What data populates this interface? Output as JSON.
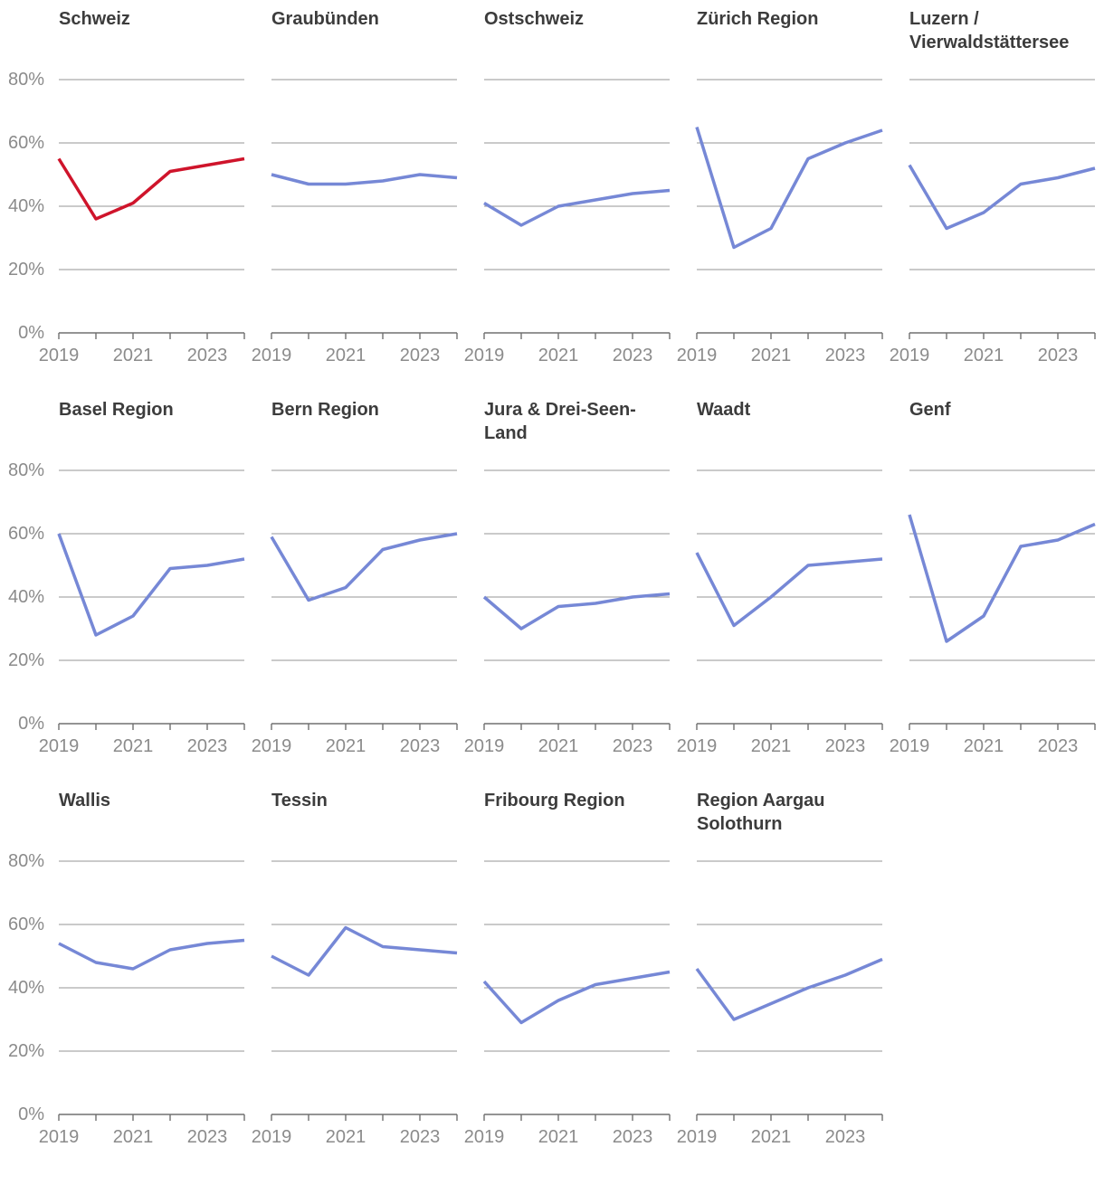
{
  "chart_data": {
    "type": "line",
    "x": [
      2019,
      2020,
      2021,
      2022,
      2023,
      2024
    ],
    "xtick_labels": [
      "2019",
      "2021",
      "2023"
    ],
    "xtick_label_positions": [
      0,
      2,
      4
    ],
    "yticks": [
      0,
      20,
      40,
      60,
      80
    ],
    "ytick_suffix": "%",
    "ylim": [
      0,
      85
    ],
    "grid": true,
    "legend_position": "none",
    "default_color": "#7688d6",
    "highlight_color": "#cf142b",
    "columns_per_row": 5,
    "charts": [
      {
        "title": "Schweiz",
        "highlight": true,
        "values": [
          55,
          36,
          41,
          51,
          53,
          55
        ]
      },
      {
        "title": "Graubünden",
        "highlight": false,
        "values": [
          50,
          47,
          47,
          48,
          50,
          49
        ]
      },
      {
        "title": "Ostschweiz",
        "highlight": false,
        "values": [
          41,
          34,
          40,
          42,
          44,
          45
        ]
      },
      {
        "title": "Zürich Region",
        "highlight": false,
        "values": [
          65,
          27,
          33,
          55,
          60,
          64
        ]
      },
      {
        "title": "Luzern / Vierwaldstättersee",
        "highlight": false,
        "values": [
          53,
          33,
          38,
          47,
          49,
          52
        ]
      },
      {
        "title": "Basel Region",
        "highlight": false,
        "values": [
          60,
          28,
          34,
          49,
          50,
          52
        ]
      },
      {
        "title": "Bern Region",
        "highlight": false,
        "values": [
          59,
          39,
          43,
          55,
          58,
          60
        ]
      },
      {
        "title": "Jura & Drei-Seen-Land",
        "highlight": false,
        "values": [
          40,
          30,
          37,
          38,
          40,
          41
        ]
      },
      {
        "title": "Waadt",
        "highlight": false,
        "values": [
          54,
          31,
          40,
          50,
          51,
          52
        ]
      },
      {
        "title": "Genf",
        "highlight": false,
        "values": [
          66,
          26,
          34,
          56,
          58,
          63
        ]
      },
      {
        "title": "Wallis",
        "highlight": false,
        "values": [
          54,
          48,
          46,
          52,
          54,
          55
        ]
      },
      {
        "title": "Tessin",
        "highlight": false,
        "values": [
          50,
          44,
          59,
          53,
          52,
          51
        ]
      },
      {
        "title": "Fribourg Region",
        "highlight": false,
        "values": [
          42,
          29,
          36,
          41,
          43,
          45
        ]
      },
      {
        "title": "Region Aargau Solothurn",
        "highlight": false,
        "values": [
          46,
          30,
          35,
          40,
          44,
          49
        ]
      }
    ],
    "style": {
      "gridline_color": "#949494",
      "axis_color": "#707070",
      "title_color": "#3c3c3c",
      "label_color": "#8b8b8b"
    }
  }
}
